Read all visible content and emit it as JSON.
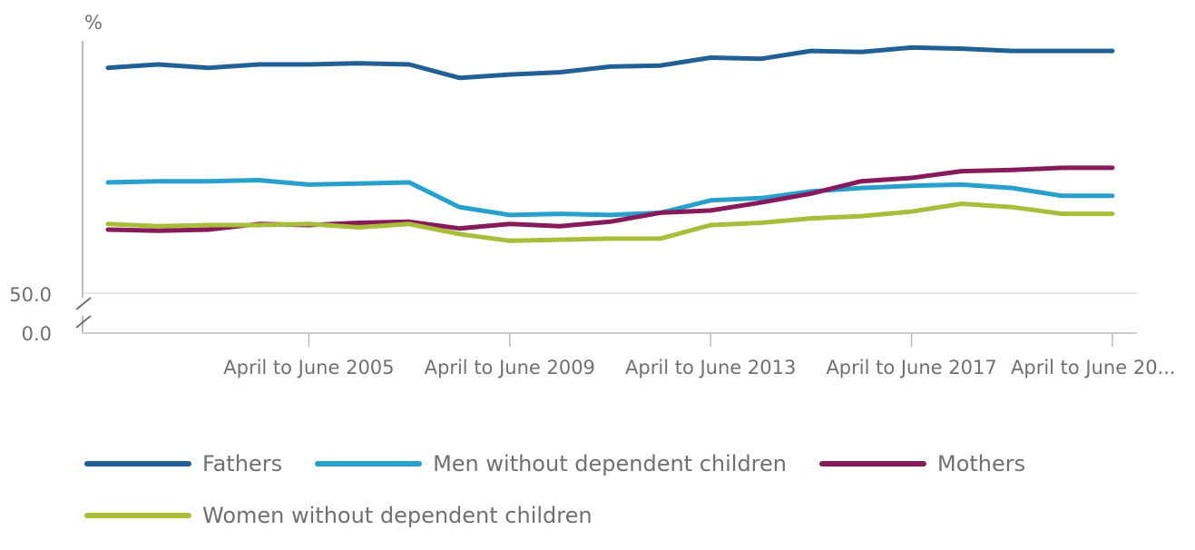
{
  "chart_data": {
    "type": "line",
    "unit_label": "%",
    "y_tick_labels": [
      "50.0",
      "0.0"
    ],
    "axis_break": true,
    "grid": false,
    "legend_position": "bottom",
    "x_tick_labels": [
      "April to June 2005",
      "April to June 2009",
      "April to June 2013",
      "April to June 2017",
      "April to June 20..."
    ],
    "x": [
      2001,
      2002,
      2003,
      2004,
      2005,
      2006,
      2007,
      2008,
      2009,
      2010,
      2011,
      2012,
      2013,
      2014,
      2015,
      2016,
      2017,
      2018,
      2019,
      2020,
      2021
    ],
    "series": [
      {
        "name": "Fathers",
        "color": "#206095",
        "values": [
          90.2,
          90.5,
          90.2,
          90.5,
          90.5,
          90.6,
          90.5,
          89.3,
          89.6,
          89.8,
          90.3,
          90.4,
          91.1,
          91.0,
          91.7,
          91.6,
          92.0,
          91.9,
          91.7,
          91.7,
          91.7
        ]
      },
      {
        "name": "Men without dependent children",
        "color": "#27a0cc",
        "values": [
          80.0,
          80.1,
          80.1,
          80.2,
          79.8,
          79.9,
          80.0,
          77.8,
          77.1,
          77.2,
          77.1,
          77.3,
          78.4,
          78.6,
          79.2,
          79.5,
          79.7,
          79.8,
          79.5,
          78.8,
          78.8
        ]
      },
      {
        "name": "Mothers",
        "color": "#871a5b",
        "values": [
          75.8,
          75.7,
          75.8,
          76.3,
          76.2,
          76.4,
          76.5,
          75.9,
          76.3,
          76.1,
          76.5,
          77.3,
          77.5,
          78.2,
          79.0,
          80.1,
          80.4,
          81.0,
          81.1,
          81.3,
          81.3
        ]
      },
      {
        "name": "Women without dependent children",
        "color": "#a8bd3a",
        "values": [
          76.3,
          76.1,
          76.2,
          76.2,
          76.3,
          76.0,
          76.3,
          75.4,
          74.8,
          74.9,
          75.0,
          75.0,
          76.2,
          76.4,
          76.8,
          77.0,
          77.4,
          78.1,
          77.8,
          77.2,
          77.2
        ]
      }
    ]
  }
}
